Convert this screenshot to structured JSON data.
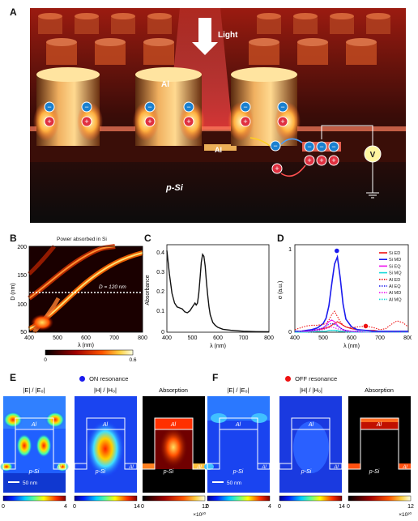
{
  "panel_A": {
    "letter": "A",
    "labels": {
      "light": "Light",
      "al_top": "Al",
      "al_bottom": "Al",
      "psi": "p-Si",
      "voltmeter": "V"
    }
  },
  "panel_B": {
    "letter": "B",
    "title": "Power absorbed in Si",
    "xlabel": "λ (nm)",
    "ylabel": "D (nm)",
    "annotation": "D = 120 nm",
    "xticks": [
      "400",
      "500",
      "600",
      "700",
      "800"
    ],
    "yticks": [
      "200",
      "150",
      "100",
      "50"
    ],
    "colorbar_ticks": [
      "0",
      "0.6"
    ]
  },
  "panel_C": {
    "letter": "C",
    "xlabel": "λ (nm)",
    "ylabel": "Absorbance",
    "xticks": [
      "400",
      "500",
      "600",
      "700",
      "800"
    ],
    "yticks": [
      "0.4",
      "0.3",
      "0.2",
      "0.1",
      "0"
    ]
  },
  "panel_D": {
    "letter": "D",
    "xlabel": "λ (nm)",
    "ylabel": "σ (a.u.)",
    "xticks": [
      "400",
      "500",
      "600",
      "700",
      "800"
    ],
    "yticks": [
      "1",
      "0"
    ],
    "legend": [
      "Si ED",
      "Si MD",
      "Si EQ",
      "Si MQ",
      "Al ED",
      "Al EQ",
      "Al MD",
      "Al MQ"
    ],
    "legend_colors": [
      "#ee1111",
      "#1a1aee",
      "#ee11ee",
      "#18d8d8",
      "#ee1111",
      "#1a1aee",
      "#ee11ee",
      "#18d8d8"
    ]
  },
  "panel_E": {
    "letter": "E",
    "resonance": "ON resonance",
    "titles": [
      "|E| / |E₀|",
      "|H| / |H₀|",
      "Absorption"
    ],
    "al_label": "Al",
    "psi_label": "p-Si",
    "scalebar": "50 nm",
    "colorbar_ticks": [
      [
        "0",
        "4"
      ],
      [
        "0",
        "14"
      ],
      [
        "0",
        "12"
      ]
    ],
    "exponent": "×10²⁰"
  },
  "panel_F": {
    "letter": "F",
    "resonance": "OFF resonance",
    "titles": [
      "|E| / |E₀|",
      "|H| / |H₀|",
      "Absorption"
    ],
    "al_label": "Al",
    "psi_label": "p-Si",
    "scalebar": "50 nm",
    "colorbar_ticks": [
      [
        "0",
        "4"
      ],
      [
        "0",
        "14"
      ],
      [
        "0",
        "12"
      ]
    ],
    "exponent": "×10²⁰"
  },
  "chart_data": [
    {
      "panel": "C",
      "type": "line",
      "xlabel": "λ (nm)",
      "ylabel": "Absorbance",
      "xlim": [
        400,
        800
      ],
      "ylim": [
        0,
        0.45
      ],
      "series": [
        {
          "x": [
            400,
            410,
            420,
            430,
            440,
            450,
            460,
            470,
            480,
            490,
            500,
            505,
            510,
            515,
            520,
            525,
            530,
            535,
            540,
            545,
            550,
            555,
            560,
            565,
            570,
            580,
            590,
            600,
            620,
            650,
            700,
            750,
            800
          ],
          "values": [
            0.42,
            0.3,
            0.2,
            0.15,
            0.13,
            0.125,
            0.12,
            0.105,
            0.1,
            0.11,
            0.13,
            0.14,
            0.15,
            0.14,
            0.15,
            0.2,
            0.28,
            0.36,
            0.4,
            0.39,
            0.34,
            0.26,
            0.19,
            0.13,
            0.09,
            0.05,
            0.035,
            0.025,
            0.015,
            0.01,
            0.005,
            0.003,
            0.002
          ]
        }
      ]
    },
    {
      "panel": "D",
      "type": "line",
      "xlabel": "λ (nm)",
      "ylabel": "σ (a.u.)",
      "xlim": [
        400,
        800
      ],
      "ylim": [
        0,
        1
      ],
      "x": [
        400,
        420,
        440,
        460,
        480,
        500,
        510,
        520,
        530,
        540,
        550,
        560,
        570,
        580,
        600,
        620,
        650,
        680,
        700,
        720,
        740,
        760,
        780,
        800
      ],
      "series": [
        {
          "name": "Si ED",
          "values": [
            0.01,
            0.01,
            0.02,
            0.02,
            0.03,
            0.04,
            0.05,
            0.06,
            0.08,
            0.1,
            0.12,
            0.1,
            0.08,
            0.06,
            0.04,
            0.03,
            0.02,
            0.02,
            0.01,
            0.01,
            0.01,
            0.01,
            0.01,
            0.01
          ]
        },
        {
          "name": "Si MD",
          "values": [
            0.01,
            0.01,
            0.02,
            0.03,
            0.05,
            0.1,
            0.16,
            0.3,
            0.55,
            0.78,
            0.86,
            0.62,
            0.32,
            0.15,
            0.06,
            0.03,
            0.02,
            0.01,
            0.01,
            0.01,
            0.01,
            0.01,
            0.01,
            0.01
          ]
        },
        {
          "name": "Si EQ",
          "values": [
            0.0,
            0.01,
            0.01,
            0.02,
            0.03,
            0.05,
            0.08,
            0.12,
            0.14,
            0.12,
            0.08,
            0.05,
            0.03,
            0.02,
            0.01,
            0.01,
            0.0,
            0.0,
            0.0,
            0.0,
            0.0,
            0.0,
            0.0,
            0.0
          ]
        },
        {
          "name": "Si MQ",
          "values": [
            0.0,
            0.0,
            0.0,
            0.01,
            0.01,
            0.01,
            0.01,
            0.02,
            0.02,
            0.02,
            0.02,
            0.01,
            0.01,
            0.01,
            0.0,
            0.0,
            0.0,
            0.0,
            0.0,
            0.0,
            0.0,
            0.0,
            0.0,
            0.0
          ]
        },
        {
          "name": "Al ED",
          "values": [
            0.03,
            0.05,
            0.07,
            0.08,
            0.08,
            0.09,
            0.1,
            0.14,
            0.2,
            0.24,
            0.18,
            0.12,
            0.08,
            0.06,
            0.05,
            0.06,
            0.07,
            0.05,
            0.03,
            0.04,
            0.09,
            0.13,
            0.11,
            0.06
          ]
        },
        {
          "name": "Al EQ",
          "values": [
            0.0,
            0.01,
            0.01,
            0.02,
            0.03,
            0.05,
            0.07,
            0.09,
            0.1,
            0.09,
            0.07,
            0.05,
            0.03,
            0.02,
            0.01,
            0.01,
            0.0,
            0.0,
            0.0,
            0.0,
            0.0,
            0.0,
            0.0,
            0.0
          ]
        },
        {
          "name": "Al MD",
          "values": [
            0.0,
            0.0,
            0.01,
            0.01,
            0.02,
            0.03,
            0.04,
            0.05,
            0.06,
            0.05,
            0.04,
            0.03,
            0.02,
            0.01,
            0.01,
            0.0,
            0.0,
            0.0,
            0.0,
            0.0,
            0.0,
            0.0,
            0.0,
            0.0
          ]
        },
        {
          "name": "Al MQ",
          "values": [
            0.0,
            0.0,
            0.0,
            0.0,
            0.01,
            0.01,
            0.01,
            0.02,
            0.02,
            0.02,
            0.01,
            0.01,
            0.01,
            0.0,
            0.0,
            0.0,
            0.0,
            0.0,
            0.0,
            0.0,
            0.0,
            0.0,
            0.0,
            0.0
          ]
        }
      ],
      "markers": [
        {
          "label": "ON resonance",
          "x": 548,
          "y": 0.93,
          "color": "#1a1aee"
        },
        {
          "label": "OFF resonance",
          "x": 650,
          "y": 0.07,
          "color": "#ee1111"
        }
      ]
    }
  ]
}
